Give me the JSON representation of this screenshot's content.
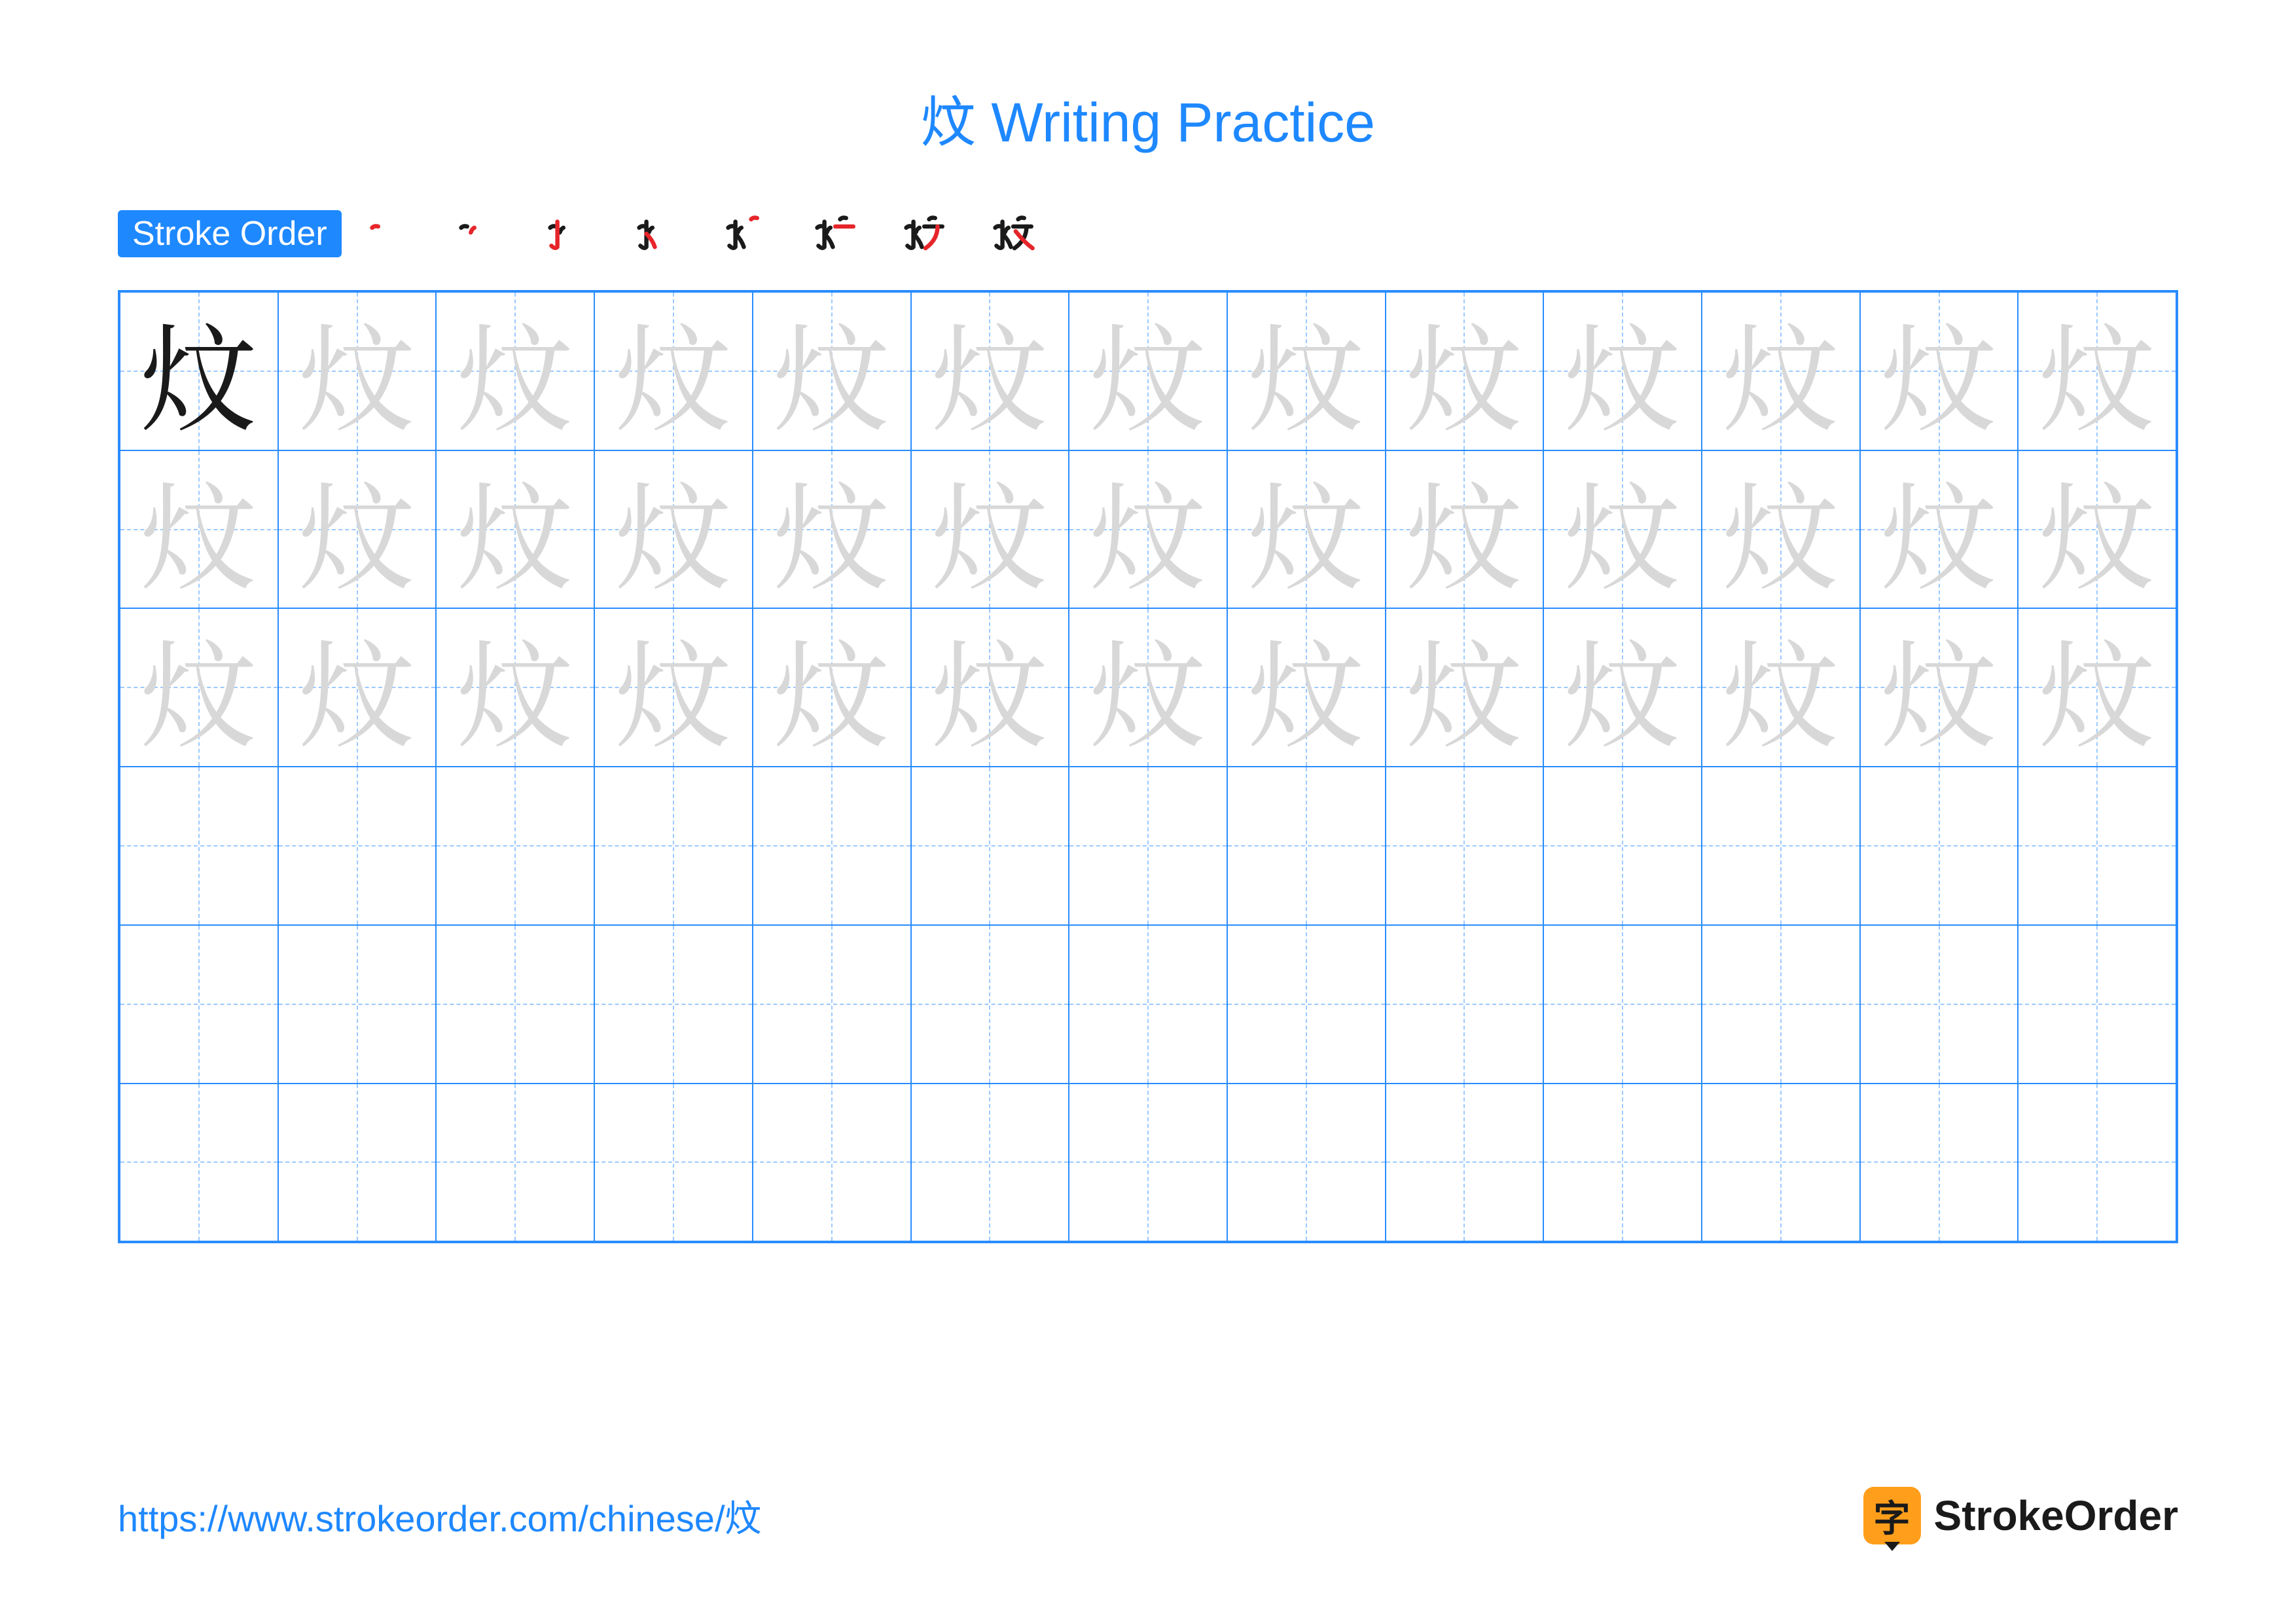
{
  "title": "炆 Writing Practice",
  "badge_label": "Stroke Order",
  "character": "炆",
  "stroke_count": 8,
  "colors": {
    "accent": "#1e88ff",
    "grid_border": "#2a8cff",
    "guide_dash": "#9cc9ff",
    "ghost_char": "#d8d8d8",
    "model_char": "#1a1a1a",
    "stroke_new": "#e6252a",
    "stroke_prev": "#1a1a1a",
    "background": "#ffffff",
    "logo_bg": "#ff9e1b"
  },
  "grid": {
    "columns": 13,
    "rows": 6,
    "ghost_rows": 3,
    "model_cell": [
      0,
      0
    ]
  },
  "strokes_svg": [
    "M 18 40 Q 22 36 28 38",
    "M 34 48 Q 36 42 40 40",
    "M 30 30 L 30 72 Q 26 76 20 70",
    "M 30 50 Q 40 60 44 72",
    "M 56 26 Q 60 22 66 24",
    "M 48 38 L 78 38",
    "M 70 38 Q 70 60 50 74",
    "M 52 46 Q 66 64 80 74"
  ],
  "footer": {
    "url": "https://www.strokeorder.com/chinese/炆",
    "logo_glyph": "字",
    "logo_text": "StrokeOrder"
  }
}
